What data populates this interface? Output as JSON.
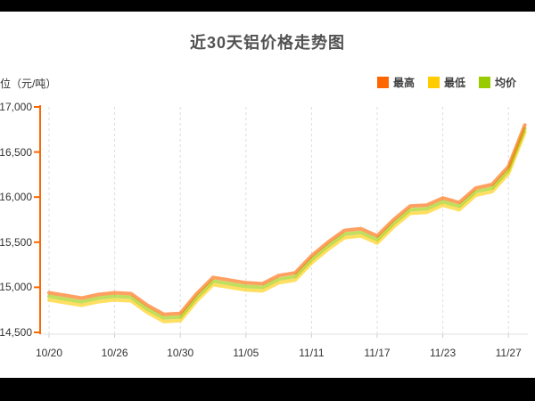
{
  "page": {
    "background": "#000000",
    "panel_background": "#ffffff"
  },
  "chart_data": {
    "type": "line",
    "title": "近30天铝价格走势图",
    "unit_label": "单位（元/吨）",
    "legend_position": "top-right",
    "grid": "vertical-dashed",
    "text_color": "#333333",
    "axis_color": "#ff6600",
    "gridline_color": "#dddddd",
    "ylim": [
      14500,
      17000
    ],
    "y_ticks": [
      17000,
      16500,
      16000,
      15500,
      15000,
      14500
    ],
    "y_tick_labels": [
      "17,000",
      "16,500",
      "16,000",
      "15,500",
      "15,000",
      "14,500"
    ],
    "x_labels": [
      "10/20",
      "10/26",
      "10/30",
      "11/05",
      "11/11",
      "11/17",
      "11/23",
      "11/27"
    ],
    "x_label_indices": [
      0,
      4,
      8,
      12,
      16,
      20,
      24,
      28
    ],
    "dates": [
      "10/20",
      "10/21",
      "10/22",
      "10/23",
      "10/26",
      "10/27",
      "10/28",
      "10/29",
      "10/30",
      "11/02",
      "11/03",
      "11/04",
      "11/05",
      "11/06",
      "11/09",
      "11/10",
      "11/11",
      "11/12",
      "11/13",
      "11/16",
      "11/17",
      "11/18",
      "11/19",
      "11/20",
      "11/23",
      "11/24",
      "11/25",
      "11/26",
      "11/27",
      "11/30"
    ],
    "series": [
      {
        "name": "最高",
        "color": "#ff6600",
        "values": [
          14940,
          14910,
          14880,
          14920,
          14940,
          14930,
          14800,
          14700,
          14710,
          14930,
          15110,
          15080,
          15050,
          15040,
          15130,
          15160,
          15350,
          15500,
          15630,
          15650,
          15570,
          15750,
          15900,
          15910,
          15990,
          15940,
          16100,
          16140,
          16340,
          16800
        ]
      },
      {
        "name": "最低",
        "color": "#ffcc00",
        "values": [
          14860,
          14830,
          14800,
          14840,
          14860,
          14850,
          14720,
          14620,
          14630,
          14850,
          15030,
          15000,
          14970,
          14960,
          15050,
          15080,
          15270,
          15420,
          15550,
          15570,
          15490,
          15670,
          15820,
          15830,
          15910,
          15860,
          16020,
          16060,
          16260,
          16720
        ]
      },
      {
        "name": "均价",
        "color": "#99cc00",
        "values": [
          14900,
          14870,
          14840,
          14880,
          14900,
          14890,
          14760,
          14660,
          14670,
          14890,
          15070,
          15040,
          15010,
          15000,
          15090,
          15120,
          15310,
          15460,
          15590,
          15610,
          15530,
          15710,
          15860,
          15870,
          15950,
          15900,
          16060,
          16100,
          16300,
          16760
        ]
      }
    ]
  }
}
